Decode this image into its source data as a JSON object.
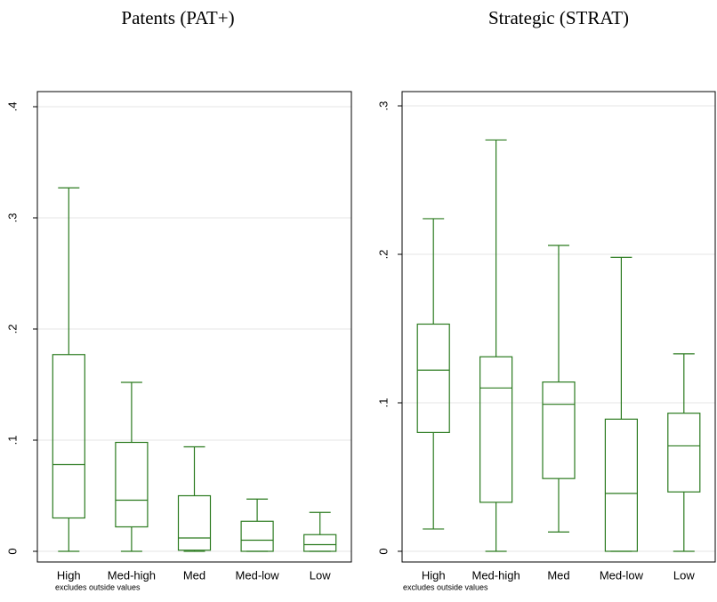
{
  "chart_data": [
    {
      "type": "box",
      "title": "Patents (PAT+)",
      "note": "excludes outside values",
      "categories": [
        "High",
        "Med-high",
        "Med",
        "Med-low",
        "Low"
      ],
      "boxes": [
        {
          "min": 0,
          "q1": 0.03,
          "median": 0.078,
          "q3": 0.177,
          "max": 0.327
        },
        {
          "min": 0,
          "q1": 0.022,
          "median": 0.046,
          "q3": 0.098,
          "max": 0.152
        },
        {
          "min": 0,
          "q1": 0.001,
          "median": 0.012,
          "q3": 0.05,
          "max": 0.094
        },
        {
          "min": 0,
          "q1": 0,
          "median": 0.01,
          "q3": 0.027,
          "max": 0.047
        },
        {
          "min": 0,
          "q1": 0,
          "median": 0.006,
          "q3": 0.015,
          "max": 0.035
        }
      ],
      "color": "#2a7a1e",
      "grid": true,
      "ylim": [
        -0.0096,
        0.4136
      ],
      "yticks": [
        0,
        {
          "value": 0.1,
          "label": ".1"
        },
        {
          "value": 0.2,
          "label": ".2"
        },
        {
          "value": 0.3,
          "label": ".3"
        },
        {
          "value": 0.4,
          "label": ".4"
        }
      ]
    },
    {
      "type": "box",
      "title": "Strategic (STRAT)",
      "note": "excludes outside values",
      "categories": [
        "High",
        "Med-high",
        "Med",
        "Med-low",
        "Low"
      ],
      "boxes": [
        {
          "min": 0.015,
          "q1": 0.08,
          "median": 0.122,
          "q3": 0.153,
          "max": 0.224
        },
        {
          "min": 0,
          "q1": 0.033,
          "median": 0.11,
          "q3": 0.131,
          "max": 0.277
        },
        {
          "min": 0.013,
          "q1": 0.049,
          "median": 0.099,
          "q3": 0.114,
          "max": 0.206
        },
        {
          "min": 0,
          "q1": 0,
          "median": 0.039,
          "q3": 0.089,
          "max": 0.198
        },
        {
          "min": 0,
          "q1": 0.04,
          "median": 0.071,
          "q3": 0.093,
          "max": 0.133
        }
      ],
      "color": "#2a7a1e",
      "grid": true,
      "ylim": [
        -0.0072,
        0.3096
      ],
      "yticks": [
        0,
        {
          "value": 0.1,
          "label": ".1"
        },
        {
          "value": 0.2,
          "label": ".2"
        },
        {
          "value": 0.3,
          "label": ".3"
        }
      ]
    }
  ]
}
